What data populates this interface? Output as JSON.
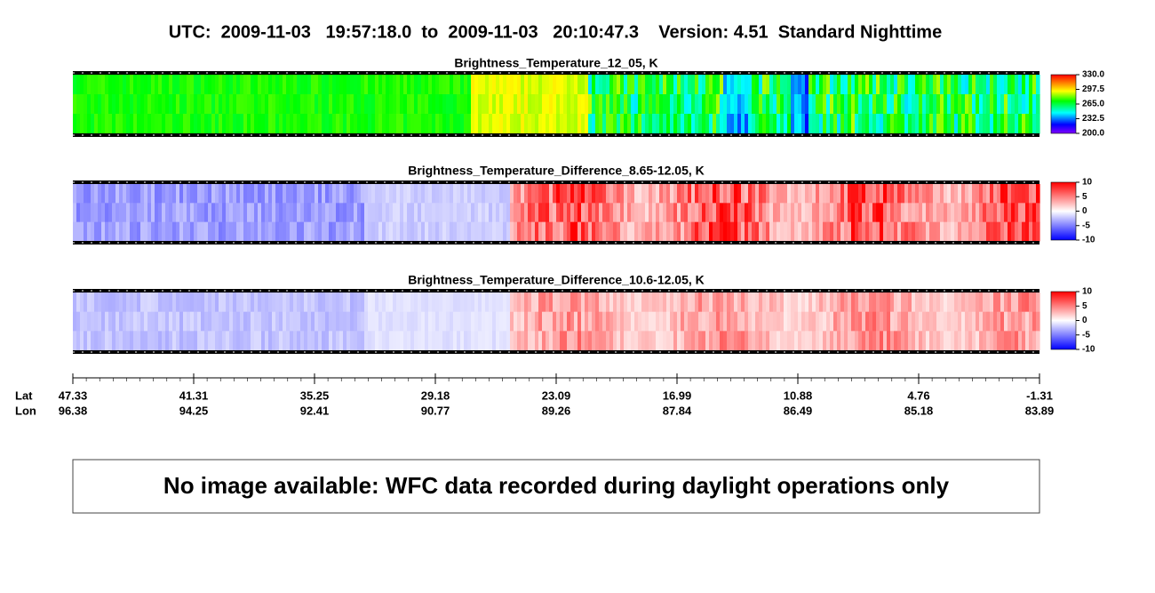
{
  "header": {
    "title": "UTC:  2009-11-03   19:57:18.0  to  2009-11-03   20:10:47.3    Version: 4.51  Standard Nighttime"
  },
  "panels": [
    {
      "title": "Brightness_Temperature_12_05, K",
      "colormap": "rainbow",
      "colorbar_ticks": [
        {
          "value": 330,
          "label": "330.0"
        },
        {
          "value": 297.5,
          "label": "297.5"
        },
        {
          "value": 265,
          "label": "265.0"
        },
        {
          "value": 232.5,
          "label": "232.5"
        },
        {
          "value": 200,
          "label": "200.0"
        }
      ]
    },
    {
      "title": "Brightness_Temperature_Difference_8.65-12.05, K",
      "colormap": "bwr",
      "colorbar_ticks": [
        10,
        5,
        0,
        -5,
        -10
      ]
    },
    {
      "title": "Brightness_Temperature_Difference_10.6-12.05, K",
      "colormap": "bwr",
      "colorbar_ticks": [
        10,
        5,
        0,
        -5,
        -10
      ]
    }
  ],
  "axis": {
    "lat_label": "Lat",
    "lon_label": "Lon",
    "lat": [
      47.33,
      41.31,
      35.25,
      29.18,
      23.09,
      16.99,
      10.88,
      4.76,
      -1.31
    ],
    "lon": [
      96.38,
      94.25,
      92.41,
      90.77,
      89.26,
      87.84,
      86.49,
      85.18,
      83.89
    ]
  },
  "notice": "No image available: WFC data recorded during daylight operations only"
}
